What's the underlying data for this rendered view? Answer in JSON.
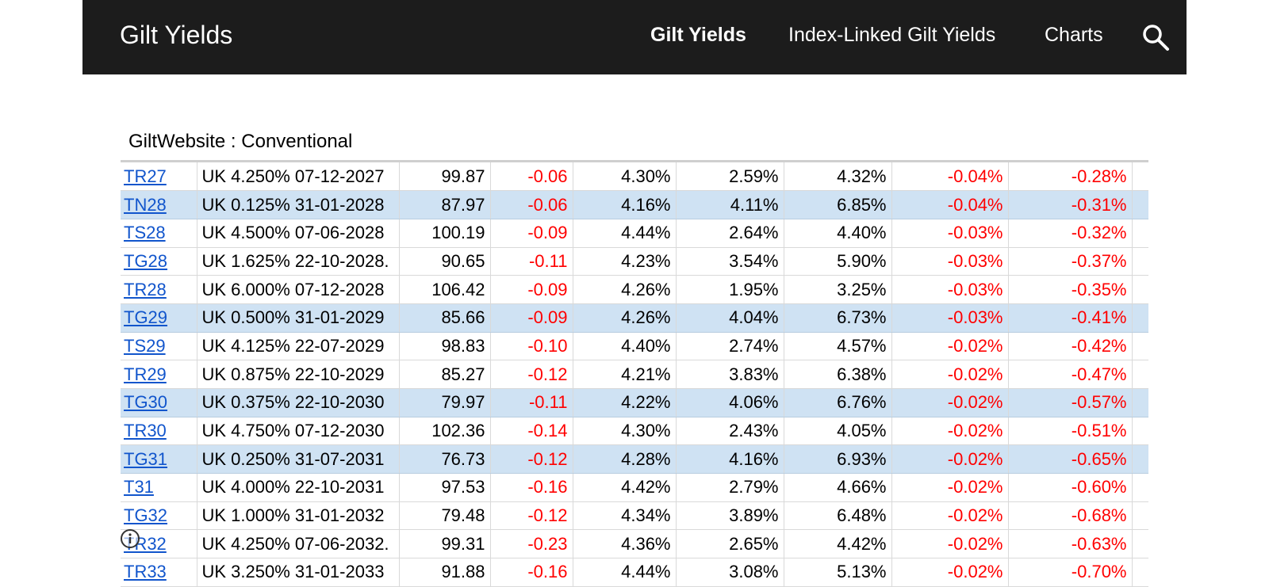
{
  "header": {
    "site_title": "Gilt Yields",
    "nav": [
      {
        "label": "Gilt Yields",
        "active": true
      },
      {
        "label": "Index-Linked Gilt Yields",
        "active": false
      },
      {
        "label": "Charts",
        "active": false
      }
    ],
    "search_icon": "search-icon"
  },
  "sheet": {
    "title": "GiltWebsite : Conventional"
  },
  "rows": [
    {
      "code": "TR27",
      "name": "UK 4.250% 07-12-2027",
      "price": "99.87",
      "change": "-0.06",
      "yield": "4.30%",
      "duration": "2.59%",
      "c5": "4.32%",
      "c6": "-0.04%",
      "c7": "-0.28%",
      "highlight": false
    },
    {
      "code": "TN28",
      "name": "UK 0.125% 31-01-2028",
      "price": "87.97",
      "change": "-0.06",
      "yield": "4.16%",
      "duration": "4.11%",
      "c5": "6.85%",
      "c6": "-0.04%",
      "c7": "-0.31%",
      "highlight": true
    },
    {
      "code": "TS28",
      "name": "UK 4.500% 07-06-2028",
      "price": "100.19",
      "change": "-0.09",
      "yield": "4.44%",
      "duration": "2.64%",
      "c5": "4.40%",
      "c6": "-0.03%",
      "c7": "-0.32%",
      "highlight": false
    },
    {
      "code": "TG28",
      "name": "UK 1.625% 22-10-2028.",
      "price": "90.65",
      "change": "-0.11",
      "yield": "4.23%",
      "duration": "3.54%",
      "c5": "5.90%",
      "c6": "-0.03%",
      "c7": "-0.37%",
      "highlight": false
    },
    {
      "code": "TR28",
      "name": "UK 6.000% 07-12-2028",
      "price": "106.42",
      "change": "-0.09",
      "yield": "4.26%",
      "duration": "1.95%",
      "c5": "3.25%",
      "c6": "-0.03%",
      "c7": "-0.35%",
      "highlight": false
    },
    {
      "code": "TG29",
      "name": "UK 0.500% 31-01-2029",
      "price": "85.66",
      "change": "-0.09",
      "yield": "4.26%",
      "duration": "4.04%",
      "c5": "6.73%",
      "c6": "-0.03%",
      "c7": "-0.41%",
      "highlight": true
    },
    {
      "code": "TS29",
      "name": "UK 4.125% 22-07-2029",
      "price": "98.83",
      "change": "-0.10",
      "yield": "4.40%",
      "duration": "2.74%",
      "c5": "4.57%",
      "c6": "-0.02%",
      "c7": "-0.42%",
      "highlight": false
    },
    {
      "code": "TR29",
      "name": "UK 0.875% 22-10-2029",
      "price": "85.27",
      "change": "-0.12",
      "yield": "4.21%",
      "duration": "3.83%",
      "c5": "6.38%",
      "c6": "-0.02%",
      "c7": "-0.47%",
      "highlight": false
    },
    {
      "code": "TG30",
      "name": "UK 0.375% 22-10-2030",
      "price": "79.97",
      "change": "-0.11",
      "yield": "4.22%",
      "duration": "4.06%",
      "c5": "6.76%",
      "c6": "-0.02%",
      "c7": "-0.57%",
      "highlight": true
    },
    {
      "code": "TR30",
      "name": "UK 4.750% 07-12-2030",
      "price": "102.36",
      "change": "-0.14",
      "yield": "4.30%",
      "duration": "2.43%",
      "c5": "4.05%",
      "c6": "-0.02%",
      "c7": "-0.51%",
      "highlight": false
    },
    {
      "code": "TG31",
      "name": "UK 0.250% 31-07-2031",
      "price": "76.73",
      "change": "-0.12",
      "yield": "4.28%",
      "duration": "4.16%",
      "c5": "6.93%",
      "c6": "-0.02%",
      "c7": "-0.65%",
      "highlight": true
    },
    {
      "code": "T31",
      "name": "UK 4.000% 22-10-2031",
      "price": "97.53",
      "change": "-0.16",
      "yield": "4.42%",
      "duration": "2.79%",
      "c5": "4.66%",
      "c6": "-0.02%",
      "c7": "-0.60%",
      "highlight": false
    },
    {
      "code": "TG32",
      "name": "UK 1.000% 31-01-2032",
      "price": "79.48",
      "change": "-0.12",
      "yield": "4.34%",
      "duration": "3.89%",
      "c5": "6.48%",
      "c6": "-0.02%",
      "c7": "-0.68%",
      "highlight": false
    },
    {
      "code": "TR32",
      "name": "UK 4.250% 07-06-2032.",
      "price": "99.31",
      "change": "-0.23",
      "yield": "4.36%",
      "duration": "2.65%",
      "c5": "4.42%",
      "c6": "-0.02%",
      "c7": "-0.63%",
      "highlight": false
    },
    {
      "code": "TR33",
      "name": "UK 3.250% 31-01-2033",
      "price": "91.88",
      "change": "-0.16",
      "yield": "4.44%",
      "duration": "3.08%",
      "c5": "5.13%",
      "c6": "-0.02%",
      "c7": "-0.70%",
      "highlight": false
    }
  ],
  "colors": {
    "header_bg": "#1c1c1c",
    "highlight_row": "#cfe2f3",
    "link": "#1155cc",
    "negative": "#ff0000"
  },
  "overlay_icon": "info-icon"
}
